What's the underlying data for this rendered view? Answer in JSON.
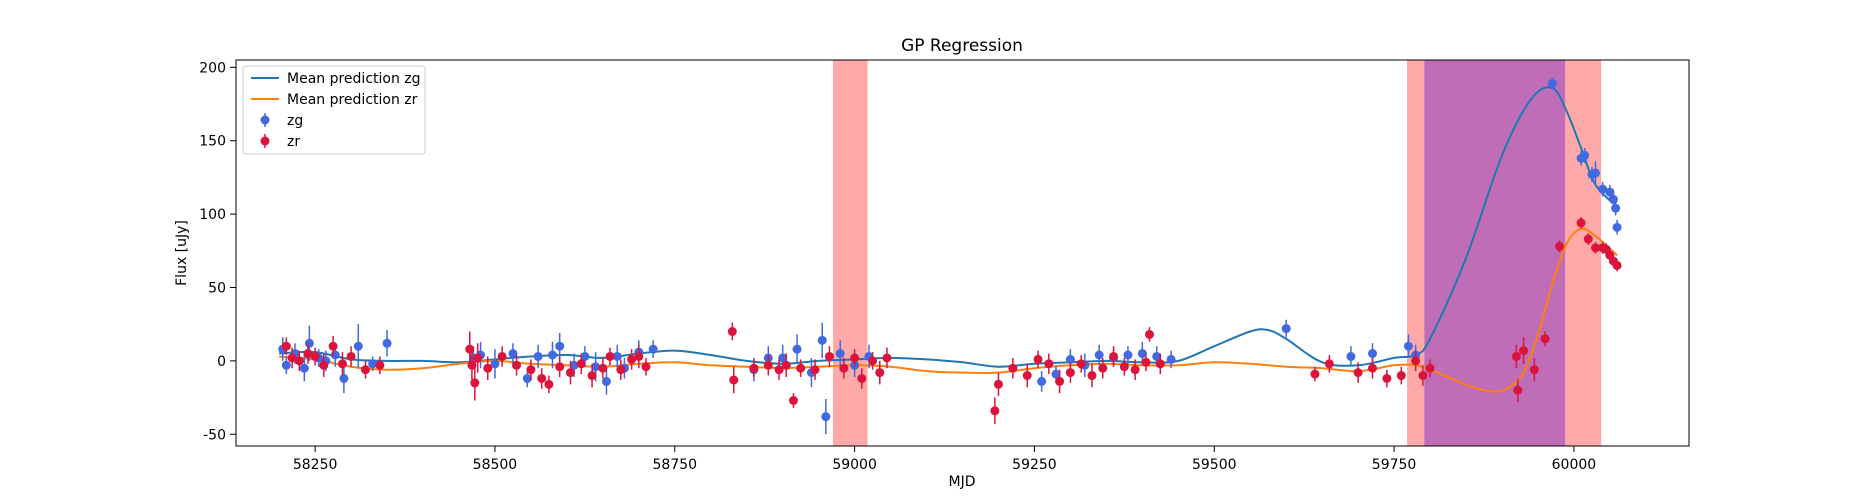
{
  "chart_data": {
    "type": "scatter",
    "title": "GP Regression",
    "xlabel": "MJD",
    "ylabel": "Flux [uJy]",
    "xlim": [
      58140,
      60160
    ],
    "ylim": [
      -58,
      205
    ],
    "x_ticks": [
      58250,
      58500,
      58750,
      59000,
      59250,
      59500,
      59750,
      60000
    ],
    "y_ticks": [
      -50,
      0,
      50,
      100,
      150,
      200
    ],
    "grid": false,
    "legend_position": "top-left",
    "colors": {
      "mean_zg": "#1f77b4",
      "mean_zr": "#ff7f0e",
      "zg_points": "#4169e1",
      "zr_points": "#dc143c",
      "red_band": "#ff6f6f",
      "purple_band": "#a83c9e"
    },
    "shaded_regions": [
      {
        "x0": 58970,
        "x1": 59018,
        "color": "red"
      },
      {
        "x0": 59768,
        "x1": 59792,
        "color": "red"
      },
      {
        "x0": 59792,
        "x1": 59988,
        "color": "purple"
      },
      {
        "x0": 59988,
        "x1": 60038,
        "color": "red"
      }
    ],
    "series": [
      {
        "name": "Mean prediction zg",
        "kind": "line",
        "x": [
          58200,
          58250,
          58300,
          58350,
          58400,
          58450,
          58500,
          58550,
          58600,
          58650,
          58700,
          58750,
          58800,
          58850,
          58900,
          58950,
          59000,
          59050,
          59100,
          59150,
          59200,
          59250,
          59300,
          59350,
          59400,
          59450,
          59500,
          59550,
          59575,
          59600,
          59650,
          59700,
          59750,
          59780,
          59800,
          59850,
          59900,
          59940,
          59970,
          59990,
          60010,
          60030,
          60060
        ],
        "y": [
          5,
          6,
          1,
          0,
          0,
          -1,
          1,
          3,
          4,
          2,
          5,
          7,
          4,
          0,
          -2,
          0,
          1,
          2,
          1,
          -1,
          -4,
          -2,
          -1,
          0,
          -1,
          0,
          10,
          20,
          21,
          15,
          -1,
          -3,
          2,
          4,
          15,
          70,
          140,
          178,
          186,
          170,
          145,
          120,
          105
        ]
      },
      {
        "name": "Mean prediction zr",
        "kind": "line",
        "x": [
          58200,
          58250,
          58300,
          58350,
          58400,
          58450,
          58500,
          58550,
          58600,
          58650,
          58700,
          58750,
          58800,
          58850,
          58900,
          58950,
          59000,
          59050,
          59100,
          59150,
          59200,
          59250,
          59300,
          59350,
          59400,
          59450,
          59500,
          59550,
          59600,
          59650,
          59700,
          59750,
          59780,
          59800,
          59830,
          59860,
          59890,
          59910,
          59930,
          59950,
          59970,
          59990,
          60010,
          60030,
          60060
        ],
        "y": [
          3,
          1,
          -4,
          -6,
          -5,
          -2,
          0,
          -2,
          -3,
          -4,
          -2,
          -1,
          -3,
          -4,
          -5,
          -4,
          -3,
          -4,
          -7,
          -8,
          -8,
          -5,
          -3,
          -2,
          -3,
          -3,
          -1,
          -2,
          -4,
          -5,
          -7,
          -3,
          -3,
          -6,
          -12,
          -18,
          -21,
          -18,
          -8,
          18,
          52,
          80,
          90,
          85,
          72
        ]
      },
      {
        "name": "zg",
        "kind": "errorbar",
        "x": [
          58205,
          58210,
          58222,
          58235,
          58242,
          58255,
          58265,
          58278,
          58290,
          58310,
          58330,
          58350,
          58470,
          58480,
          58500,
          58525,
          58545,
          58560,
          58580,
          58590,
          58610,
          58625,
          58640,
          58655,
          58670,
          58680,
          58700,
          58720,
          58860,
          58880,
          58900,
          58920,
          58940,
          58955,
          58960,
          58980,
          59000,
          59020,
          59260,
          59280,
          59300,
          59320,
          59340,
          59360,
          59380,
          59400,
          59420,
          59440,
          59600,
          59690,
          59720,
          59770,
          59780,
          59970,
          60010,
          60015,
          60025,
          60030,
          60040,
          60050,
          60055,
          60058,
          60060
        ],
        "y": [
          8,
          -3,
          5,
          -5,
          12,
          2,
          0,
          4,
          -12,
          10,
          -2,
          12,
          2,
          4,
          -2,
          5,
          -12,
          3,
          4,
          10,
          -3,
          3,
          -4,
          -14,
          3,
          -5,
          6,
          8,
          -6,
          2,
          2,
          8,
          -8,
          14,
          -38,
          5,
          -3,
          3,
          -14,
          -9,
          1,
          -3,
          4,
          2,
          4,
          5,
          3,
          1,
          22,
          3,
          5,
          10,
          4,
          189,
          138,
          140,
          127,
          128,
          117,
          115,
          110,
          104,
          91
        ],
        "err": [
          8,
          6,
          7,
          9,
          12,
          6,
          7,
          8,
          10,
          15,
          5,
          9,
          8,
          9,
          10,
          7,
          6,
          8,
          9,
          9,
          8,
          7,
          10,
          9,
          8,
          7,
          8,
          6,
          8,
          8,
          9,
          10,
          10,
          12,
          12,
          9,
          8,
          8,
          7,
          6,
          7,
          8,
          7,
          6,
          6,
          8,
          7,
          6,
          6,
          7,
          7,
          8,
          7,
          4,
          5,
          5,
          5,
          8,
          5,
          5,
          5,
          5,
          5
        ]
      },
      {
        "name": "zr",
        "kind": "errorbar",
        "x": [
          58210,
          58218,
          58228,
          58240,
          58250,
          58262,
          58275,
          58288,
          58300,
          58320,
          58340,
          58465,
          58468,
          58472,
          58476,
          58490,
          58510,
          58530,
          58550,
          58565,
          58575,
          58590,
          58605,
          58620,
          58635,
          58650,
          58660,
          58675,
          58690,
          58700,
          58710,
          58830,
          58832,
          58860,
          58880,
          58895,
          58905,
          58915,
          58925,
          58945,
          58965,
          58985,
          59000,
          59010,
          59025,
          59035,
          59045,
          59195,
          59200,
          59220,
          59240,
          59255,
          59270,
          59285,
          59300,
          59315,
          59330,
          59345,
          59360,
          59375,
          59390,
          59405,
          59410,
          59425,
          59640,
          59660,
          59700,
          59720,
          59740,
          59760,
          59780,
          59790,
          59800,
          59920,
          59922,
          59930,
          59945,
          59960,
          59980,
          60010,
          60020,
          60030,
          60040,
          60045,
          60050,
          60055,
          60060
        ],
        "y": [
          10,
          2,
          0,
          5,
          3,
          -3,
          10,
          -2,
          3,
          -6,
          -3,
          8,
          -3,
          -15,
          2,
          -5,
          3,
          -3,
          -6,
          -12,
          -16,
          -4,
          -8,
          -2,
          -10,
          -5,
          3,
          -6,
          1,
          3,
          -4,
          20,
          -13,
          -5,
          -3,
          -6,
          -3,
          -27,
          -5,
          -6,
          3,
          -5,
          2,
          -12,
          0,
          -8,
          2,
          -34,
          -16,
          -5,
          -10,
          1,
          -2,
          -14,
          -8,
          -2,
          -10,
          -5,
          3,
          -4,
          -6,
          -1,
          18,
          -2,
          -9,
          -2,
          -8,
          -5,
          -12,
          -10,
          0,
          -10,
          -5,
          3,
          -20,
          7,
          -6,
          15,
          78,
          94,
          83,
          77,
          77,
          76,
          72,
          68,
          65
        ],
        "err": [
          6,
          7,
          7,
          7,
          6,
          8,
          7,
          8,
          7,
          6,
          6,
          12,
          10,
          12,
          10,
          8,
          7,
          7,
          7,
          7,
          6,
          7,
          8,
          7,
          8,
          7,
          6,
          7,
          7,
          8,
          6,
          6,
          9,
          6,
          7,
          7,
          8,
          5,
          6,
          7,
          7,
          7,
          6,
          7,
          6,
          8,
          7,
          9,
          8,
          7,
          8,
          6,
          7,
          8,
          7,
          6,
          8,
          7,
          7,
          6,
          7,
          6,
          5,
          7,
          5,
          6,
          7,
          7,
          6,
          6,
          7,
          7,
          6,
          8,
          8,
          9,
          8,
          5,
          4,
          4,
          4,
          4,
          4,
          4,
          4,
          4,
          4
        ]
      }
    ]
  }
}
